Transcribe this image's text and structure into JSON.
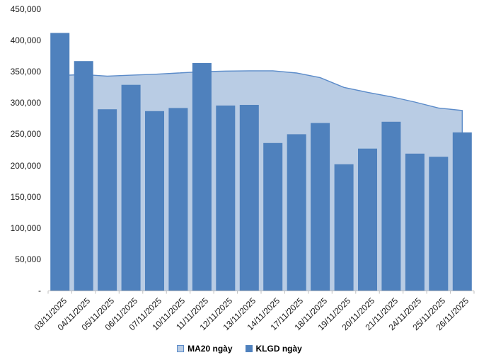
{
  "chart_data": {
    "type": "combo",
    "title": "",
    "xlabel": "",
    "ylabel": "",
    "grid": false,
    "legend_position": "bottom",
    "background": "#FFFFFF",
    "axis_color": "#BFBFBF",
    "text_color": "#1a1a1a",
    "ylim": [
      0,
      450000
    ],
    "ytick_step": 50000,
    "ytick_labels_top_to_bottom": [
      "450,000",
      "400,000",
      "350,000",
      "300,000",
      "250,000",
      "200,000",
      "150,000",
      "100,000",
      "50,000",
      "-"
    ],
    "categories": [
      "03/11/2025",
      "04/11/2025",
      "05/11/2025",
      "06/11/2025",
      "07/11/2025",
      "10/11/2025",
      "11/11/2025",
      "12/11/2025",
      "13/11/2025",
      "14/11/2025",
      "17/11/2025",
      "18/11/2025",
      "19/11/2025",
      "20/11/2025",
      "21/11/2025",
      "24/11/2025",
      "25/11/2025",
      "26/11/2025"
    ],
    "series": [
      {
        "name": "MA20 ngày",
        "type": "area",
        "color": "#B9CCE4",
        "line_color": "#5B8BC9",
        "values": [
          344000,
          345500,
          343000,
          344500,
          346000,
          348000,
          350000,
          351000,
          351500,
          351500,
          348000,
          340500,
          325000,
          317000,
          310000,
          301500,
          292000,
          288000
        ]
      },
      {
        "name": "KLGD ngày",
        "type": "bar",
        "color": "#4F81BD",
        "values": [
          412000,
          367000,
          290000,
          329000,
          287000,
          292000,
          364000,
          296000,
          297000,
          236000,
          250000,
          268000,
          202000,
          227000,
          270000,
          219000,
          214000,
          253000
        ]
      }
    ]
  }
}
